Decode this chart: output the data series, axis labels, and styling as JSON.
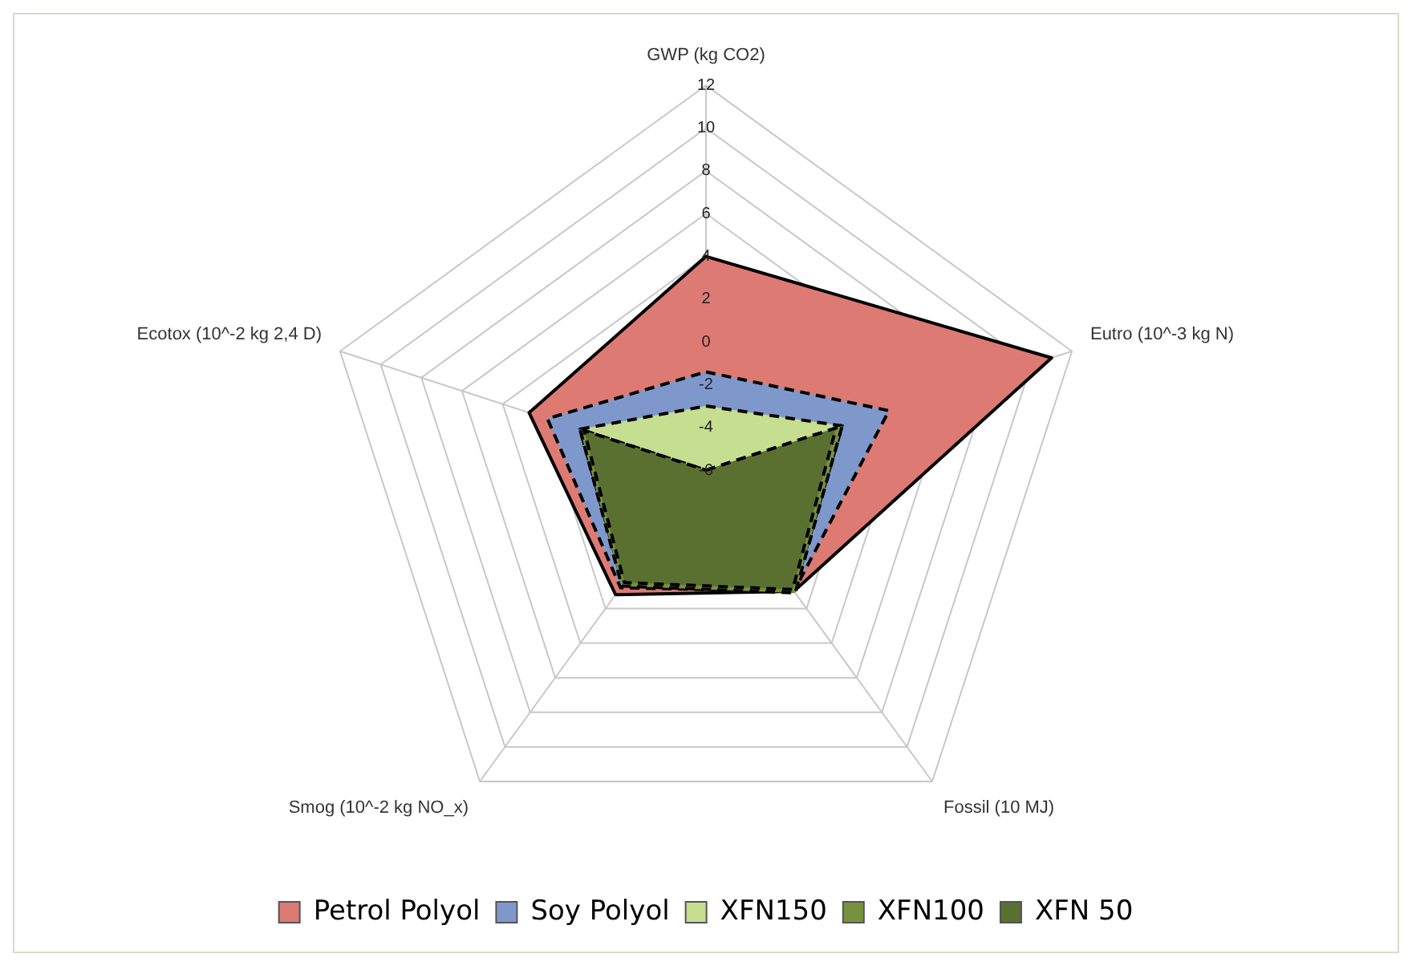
{
  "chart_data": {
    "type": "radar",
    "categories": [
      "GWP (kg CO2)",
      "Eutro (10^-3 kg N)",
      "Fossil (10 MJ)",
      "Smog (10^-2 kg NO_x)",
      "Ecotox (10^-2 kg 2,4 D)"
    ],
    "ylim": [
      -6,
      12
    ],
    "yticks": [
      -6,
      -4,
      -2,
      0,
      2,
      4,
      6,
      8,
      10,
      12
    ],
    "grid": true,
    "legend": "bottom",
    "marker": "none",
    "series": [
      {
        "name": "Petrol Polyol",
        "color": "#dd7a73",
        "line_style": "solid",
        "values": [
          4,
          11,
          1,
          1.2,
          2.7
        ]
      },
      {
        "name": "Soy Polyol",
        "color": "#7f98cb",
        "line_style": "dashed",
        "values": [
          -1.4,
          3,
          1,
          0.8,
          1.8
        ]
      },
      {
        "name": "XFN150",
        "color": "#c5de90",
        "line_style": "dashed",
        "values": [
          -3,
          0.7,
          1,
          0.6,
          0.2
        ]
      },
      {
        "name": "XFN100",
        "color": "#76923c",
        "line_style": "dashed",
        "values": [
          -6,
          0.7,
          1.1,
          0.7,
          0.2
        ]
      },
      {
        "name": "XFN 50",
        "color": "#5a7030",
        "line_style": "dashed",
        "values": [
          -6,
          0.4,
          0.9,
          0.5,
          0
        ]
      }
    ]
  }
}
